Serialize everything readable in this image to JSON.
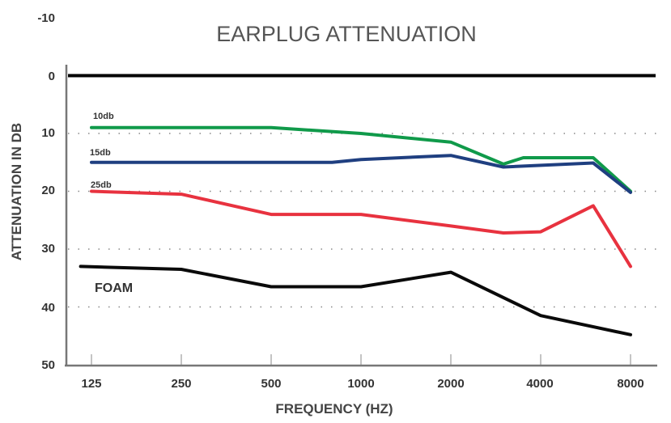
{
  "chart_data": {
    "type": "line",
    "title": "EARPLUG ATTENUATION",
    "xlabel": "FREQUENCY (HZ)",
    "ylabel": "ATTENUATION IN DB",
    "x": [
      "125",
      "250",
      "500",
      "1000",
      "2000",
      "4000",
      "8000"
    ],
    "x_scale": "log2",
    "y_ticks": [
      "-10",
      "0",
      "10",
      "20",
      "30",
      "40",
      "50"
    ],
    "ylim": [
      -10,
      50
    ],
    "y_inverted": true,
    "grid": "dotted horizontal at 10, 20, 30, 40",
    "reference_line": {
      "name": "0 dB",
      "value": 0,
      "color": "#000000"
    },
    "series": [
      {
        "name": "10db",
        "color": "#109a4a",
        "points": [
          [
            125,
            9
          ],
          [
            250,
            9
          ],
          [
            500,
            9
          ],
          [
            1000,
            10
          ],
          [
            2000,
            11.5
          ],
          [
            3000,
            15.3
          ],
          [
            3500,
            14.2
          ],
          [
            6000,
            14.2
          ],
          [
            8000,
            20
          ]
        ]
      },
      {
        "name": "15db",
        "color": "#1f3f80",
        "points": [
          [
            125,
            15
          ],
          [
            250,
            15
          ],
          [
            500,
            15
          ],
          [
            800,
            15
          ],
          [
            1000,
            14.5
          ],
          [
            2000,
            13.8
          ],
          [
            3000,
            15.8
          ],
          [
            6000,
            15.1
          ],
          [
            8000,
            20.2
          ]
        ]
      },
      {
        "name": "25db",
        "color": "#e8323f",
        "points": [
          [
            125,
            20
          ],
          [
            250,
            20.5
          ],
          [
            500,
            24
          ],
          [
            1000,
            24
          ],
          [
            2000,
            26
          ],
          [
            3000,
            27.2
          ],
          [
            4000,
            27
          ],
          [
            6000,
            22.5
          ],
          [
            8000,
            33
          ]
        ]
      },
      {
        "name": "FOAM",
        "color": "#0a0a0a",
        "points": [
          [
            115,
            33
          ],
          [
            250,
            33.5
          ],
          [
            500,
            36.5
          ],
          [
            1000,
            36.5
          ],
          [
            2000,
            34
          ],
          [
            4000,
            41.5
          ],
          [
            8000,
            44.8
          ]
        ]
      }
    ]
  }
}
